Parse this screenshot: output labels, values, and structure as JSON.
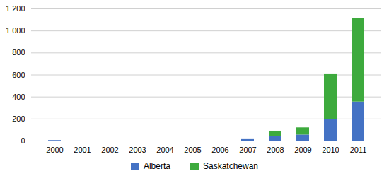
{
  "chart_data": {
    "type": "bar",
    "stacked": true,
    "categories": [
      "2000",
      "2001",
      "2002",
      "2003",
      "2004",
      "2005",
      "2006",
      "2007",
      "2008",
      "2009",
      "2010",
      "2011"
    ],
    "series": [
      {
        "name": "Alberta",
        "color": "#4472C4",
        "values": [
          5,
          0,
          0,
          0,
          0,
          0,
          0,
          20,
          45,
          55,
          195,
          355
        ]
      },
      {
        "name": "Saskatchewan",
        "color": "#3DAA3D",
        "values": [
          0,
          0,
          0,
          0,
          0,
          0,
          0,
          0,
          45,
          65,
          415,
          760
        ]
      }
    ],
    "ylim": [
      0,
      1200
    ],
    "yticks": [
      0,
      200,
      400,
      600,
      800,
      {
        "value": 1000,
        "label": "1 000"
      },
      {
        "value": 1200,
        "label": "1 200"
      }
    ],
    "grid": true,
    "legend": "bottom"
  }
}
